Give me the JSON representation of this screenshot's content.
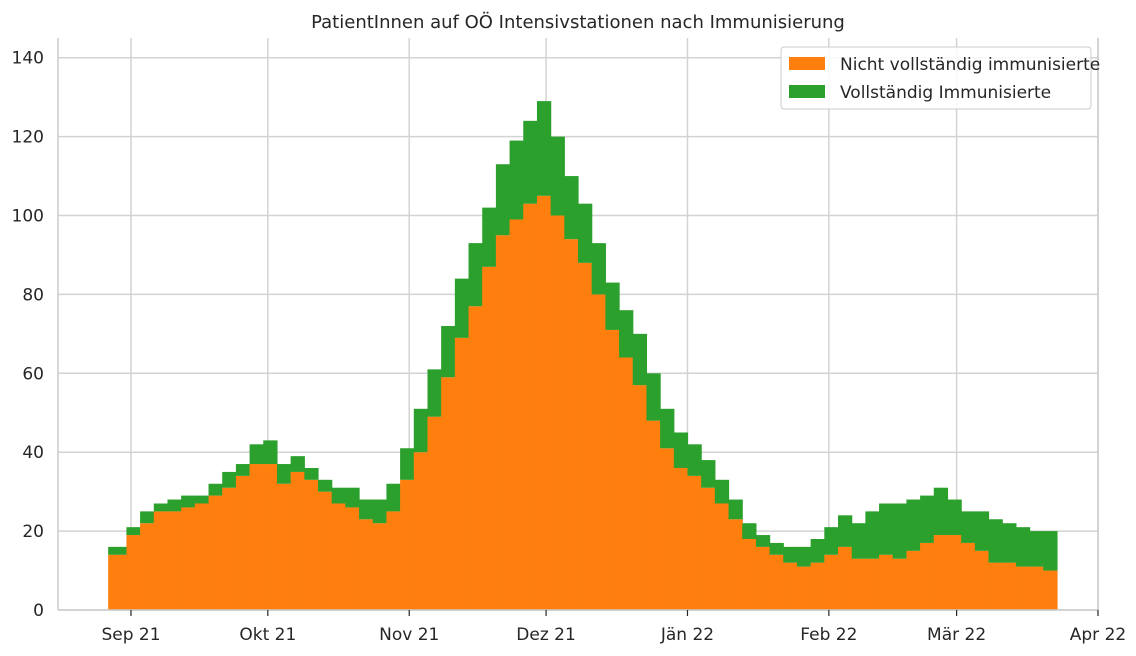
{
  "chart_data": {
    "type": "bar",
    "stacked": true,
    "title": "PatientInnen auf OÖ Intensivstationen nach Immunisierung",
    "xlabel": "",
    "ylabel": "",
    "grid": true,
    "legend_position": "top-right",
    "x_range": [
      "2021-08-16",
      "2022-04-01"
    ],
    "ylim": [
      0,
      145
    ],
    "x_ticks": [
      {
        "date": "2021-09-01",
        "label": "Sep 21"
      },
      {
        "date": "2021-10-01",
        "label": "Okt 21"
      },
      {
        "date": "2021-11-01",
        "label": "Nov 21"
      },
      {
        "date": "2021-12-01",
        "label": "Dez 21"
      },
      {
        "date": "2022-01-01",
        "label": "Jän 22"
      },
      {
        "date": "2022-02-01",
        "label": "Feb 22"
      },
      {
        "date": "2022-03-01",
        "label": "Mär 22"
      },
      {
        "date": "2022-04-01",
        "label": "Apr 22"
      }
    ],
    "y_ticks": [
      0,
      20,
      40,
      60,
      80,
      100,
      120,
      140
    ],
    "series": [
      {
        "name": "Nicht vollständig immunisierte",
        "color": "#ff7f0e",
        "points": [
          [
            "2021-08-27",
            14
          ],
          [
            "2021-08-31",
            19
          ],
          [
            "2021-09-03",
            22
          ],
          [
            "2021-09-06",
            25
          ],
          [
            "2021-09-09",
            25
          ],
          [
            "2021-09-12",
            26
          ],
          [
            "2021-09-15",
            27
          ],
          [
            "2021-09-18",
            29
          ],
          [
            "2021-09-21",
            31
          ],
          [
            "2021-09-24",
            34
          ],
          [
            "2021-09-27",
            37
          ],
          [
            "2021-09-30",
            37
          ],
          [
            "2021-10-03",
            32
          ],
          [
            "2021-10-06",
            35
          ],
          [
            "2021-10-09",
            33
          ],
          [
            "2021-10-12",
            30
          ],
          [
            "2021-10-15",
            27
          ],
          [
            "2021-10-18",
            26
          ],
          [
            "2021-10-21",
            23
          ],
          [
            "2021-10-24",
            22
          ],
          [
            "2021-10-27",
            25
          ],
          [
            "2021-10-30",
            33
          ],
          [
            "2021-11-02",
            40
          ],
          [
            "2021-11-05",
            49
          ],
          [
            "2021-11-08",
            59
          ],
          [
            "2021-11-11",
            69
          ],
          [
            "2021-11-14",
            77
          ],
          [
            "2021-11-17",
            87
          ],
          [
            "2021-11-20",
            95
          ],
          [
            "2021-11-23",
            99
          ],
          [
            "2021-11-26",
            103
          ],
          [
            "2021-11-29",
            105
          ],
          [
            "2021-12-02",
            100
          ],
          [
            "2021-12-05",
            94
          ],
          [
            "2021-12-08",
            88
          ],
          [
            "2021-12-11",
            80
          ],
          [
            "2021-12-14",
            71
          ],
          [
            "2021-12-17",
            64
          ],
          [
            "2021-12-20",
            57
          ],
          [
            "2021-12-23",
            48
          ],
          [
            "2021-12-26",
            41
          ],
          [
            "2021-12-29",
            36
          ],
          [
            "2022-01-01",
            34
          ],
          [
            "2022-01-04",
            31
          ],
          [
            "2022-01-07",
            27
          ],
          [
            "2022-01-10",
            23
          ],
          [
            "2022-01-13",
            18
          ],
          [
            "2022-01-16",
            16
          ],
          [
            "2022-01-19",
            14
          ],
          [
            "2022-01-22",
            12
          ],
          [
            "2022-01-25",
            11
          ],
          [
            "2022-01-28",
            12
          ],
          [
            "2022-01-31",
            14
          ],
          [
            "2022-02-03",
            16
          ],
          [
            "2022-02-06",
            13
          ],
          [
            "2022-02-09",
            13
          ],
          [
            "2022-02-12",
            14
          ],
          [
            "2022-02-15",
            13
          ],
          [
            "2022-02-18",
            15
          ],
          [
            "2022-02-21",
            17
          ],
          [
            "2022-02-24",
            19
          ],
          [
            "2022-02-27",
            19
          ],
          [
            "2022-03-02",
            17
          ],
          [
            "2022-03-05",
            15
          ],
          [
            "2022-03-08",
            12
          ],
          [
            "2022-03-11",
            12
          ],
          [
            "2022-03-14",
            11
          ],
          [
            "2022-03-17",
            11
          ],
          [
            "2022-03-20",
            10
          ]
        ]
      },
      {
        "name": "Vollständig Immunisierte",
        "color": "#2ca02c",
        "points": [
          [
            "2021-08-27",
            2
          ],
          [
            "2021-08-31",
            2
          ],
          [
            "2021-09-03",
            3
          ],
          [
            "2021-09-06",
            2
          ],
          [
            "2021-09-09",
            3
          ],
          [
            "2021-09-12",
            3
          ],
          [
            "2021-09-15",
            2
          ],
          [
            "2021-09-18",
            3
          ],
          [
            "2021-09-21",
            4
          ],
          [
            "2021-09-24",
            3
          ],
          [
            "2021-09-27",
            5
          ],
          [
            "2021-09-30",
            6
          ],
          [
            "2021-10-03",
            5
          ],
          [
            "2021-10-06",
            4
          ],
          [
            "2021-10-09",
            3
          ],
          [
            "2021-10-12",
            3
          ],
          [
            "2021-10-15",
            4
          ],
          [
            "2021-10-18",
            5
          ],
          [
            "2021-10-21",
            5
          ],
          [
            "2021-10-24",
            6
          ],
          [
            "2021-10-27",
            7
          ],
          [
            "2021-10-30",
            8
          ],
          [
            "2021-11-02",
            11
          ],
          [
            "2021-11-05",
            12
          ],
          [
            "2021-11-08",
            13
          ],
          [
            "2021-11-11",
            15
          ],
          [
            "2021-11-14",
            16
          ],
          [
            "2021-11-17",
            15
          ],
          [
            "2021-11-20",
            18
          ],
          [
            "2021-11-23",
            20
          ],
          [
            "2021-11-26",
            21
          ],
          [
            "2021-11-29",
            24
          ],
          [
            "2021-12-02",
            20
          ],
          [
            "2021-12-05",
            16
          ],
          [
            "2021-12-08",
            15
          ],
          [
            "2021-12-11",
            13
          ],
          [
            "2021-12-14",
            12
          ],
          [
            "2021-12-17",
            12
          ],
          [
            "2021-12-20",
            13
          ],
          [
            "2021-12-23",
            12
          ],
          [
            "2021-12-26",
            10
          ],
          [
            "2021-12-29",
            9
          ],
          [
            "2022-01-01",
            8
          ],
          [
            "2022-01-04",
            7
          ],
          [
            "2022-01-07",
            6
          ],
          [
            "2022-01-10",
            5
          ],
          [
            "2022-01-13",
            4
          ],
          [
            "2022-01-16",
            3
          ],
          [
            "2022-01-19",
            3
          ],
          [
            "2022-01-22",
            4
          ],
          [
            "2022-01-25",
            5
          ],
          [
            "2022-01-28",
            6
          ],
          [
            "2022-01-31",
            7
          ],
          [
            "2022-02-03",
            8
          ],
          [
            "2022-02-06",
            9
          ],
          [
            "2022-02-09",
            12
          ],
          [
            "2022-02-12",
            13
          ],
          [
            "2022-02-15",
            14
          ],
          [
            "2022-02-18",
            13
          ],
          [
            "2022-02-21",
            12
          ],
          [
            "2022-02-24",
            12
          ],
          [
            "2022-02-27",
            9
          ],
          [
            "2022-03-02",
            8
          ],
          [
            "2022-03-05",
            10
          ],
          [
            "2022-03-08",
            11
          ],
          [
            "2022-03-11",
            10
          ],
          [
            "2022-03-14",
            10
          ],
          [
            "2022-03-17",
            9
          ],
          [
            "2022-03-20",
            10
          ]
        ]
      }
    ]
  }
}
